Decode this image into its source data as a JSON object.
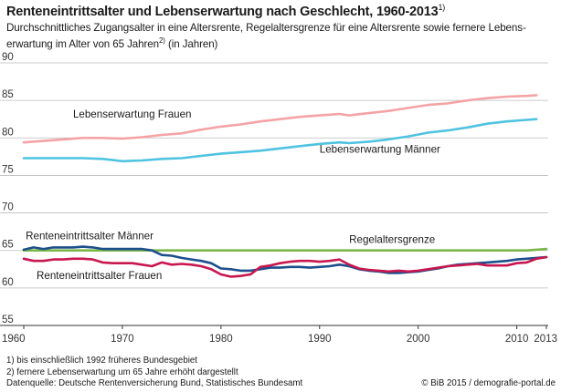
{
  "header": {
    "title": "Renteneintrittsalter und Lebenserwartung nach Geschlecht, 1960-2013",
    "title_sup": "1)",
    "subtitle_part1": "Durchschnittliches Zugangsalter in eine Altersrente, Regelaltersgrenze für eine Altersrente sowie fernere Lebens-erwartung im Alter von 65 Jahren",
    "subtitle_sup": "2)",
    "subtitle_part2": " (in Jahren)"
  },
  "footer": {
    "note1": "1) bis einschließlich 1992 früheres Bundesgebiet",
    "note2": "2) fernere Lebenserwartung um 65 Jahre erhöht dargestellt",
    "source": "Datenquelle: Deutsche Rentenversicherung Bund, Statistisches Bundesamt",
    "credit": "© BiB 2015 / demografie-portal.de"
  },
  "chart_data": {
    "type": "line",
    "xlim": [
      1960,
      2013
    ],
    "ylim": [
      55,
      90
    ],
    "x_ticks": [
      1960,
      1970,
      1980,
      1990,
      2000,
      2010,
      2013
    ],
    "y_ticks": [
      55,
      60,
      65,
      70,
      75,
      80,
      85,
      90
    ],
    "grid": "horizontal",
    "series": [
      {
        "name": "Lebenserwartung Frauen",
        "color": "#f4a3a6",
        "points": [
          [
            1960,
            79.4
          ],
          [
            1962,
            79.6
          ],
          [
            1964,
            79.8
          ],
          [
            1966,
            80.0
          ],
          [
            1968,
            80.0
          ],
          [
            1970,
            79.9
          ],
          [
            1972,
            80.1
          ],
          [
            1974,
            80.4
          ],
          [
            1976,
            80.6
          ],
          [
            1978,
            81.1
          ],
          [
            1980,
            81.5
          ],
          [
            1982,
            81.8
          ],
          [
            1984,
            82.2
          ],
          [
            1986,
            82.5
          ],
          [
            1988,
            82.8
          ],
          [
            1990,
            83.0
          ],
          [
            1991,
            83.1
          ],
          [
            1992,
            83.2
          ],
          [
            1993,
            83.0
          ],
          [
            1995,
            83.3
          ],
          [
            1997,
            83.6
          ],
          [
            1999,
            84.0
          ],
          [
            2001,
            84.4
          ],
          [
            2003,
            84.6
          ],
          [
            2005,
            85.0
          ],
          [
            2007,
            85.3
          ],
          [
            2009,
            85.5
          ],
          [
            2011,
            85.6
          ],
          [
            2012,
            85.7
          ]
        ]
      },
      {
        "name": "Lebenserwartung Männer",
        "color": "#4fc3e0",
        "points": [
          [
            1960,
            77.3
          ],
          [
            1962,
            77.3
          ],
          [
            1964,
            77.3
          ],
          [
            1966,
            77.3
          ],
          [
            1968,
            77.2
          ],
          [
            1970,
            76.9
          ],
          [
            1972,
            77.0
          ],
          [
            1974,
            77.2
          ],
          [
            1976,
            77.3
          ],
          [
            1978,
            77.6
          ],
          [
            1980,
            77.9
          ],
          [
            1982,
            78.1
          ],
          [
            1984,
            78.3
          ],
          [
            1986,
            78.6
          ],
          [
            1988,
            78.9
          ],
          [
            1990,
            79.2
          ],
          [
            1992,
            79.4
          ],
          [
            1993,
            79.3
          ],
          [
            1995,
            79.5
          ],
          [
            1997,
            79.8
          ],
          [
            1999,
            80.2
          ],
          [
            2001,
            80.7
          ],
          [
            2003,
            81.0
          ],
          [
            2005,
            81.4
          ],
          [
            2007,
            81.9
          ],
          [
            2009,
            82.2
          ],
          [
            2011,
            82.4
          ],
          [
            2012,
            82.5
          ]
        ]
      },
      {
        "name": "Regelaltersgrenze",
        "color": "#7ab648",
        "points": [
          [
            1960,
            65.0
          ],
          [
            2011,
            65.0
          ],
          [
            2012,
            65.1
          ],
          [
            2013,
            65.2
          ]
        ]
      },
      {
        "name": "Renteneintrittsalter Männer",
        "color": "#1c4f8c",
        "points": [
          [
            1960,
            65.1
          ],
          [
            1961,
            65.4
          ],
          [
            1962,
            65.2
          ],
          [
            1963,
            65.4
          ],
          [
            1964,
            65.4
          ],
          [
            1965,
            65.4
          ],
          [
            1966,
            65.5
          ],
          [
            1967,
            65.4
          ],
          [
            1968,
            65.2
          ],
          [
            1969,
            65.2
          ],
          [
            1970,
            65.2
          ],
          [
            1971,
            65.2
          ],
          [
            1972,
            65.2
          ],
          [
            1973,
            65.0
          ],
          [
            1974,
            64.4
          ],
          [
            1975,
            64.3
          ],
          [
            1976,
            64.0
          ],
          [
            1977,
            63.8
          ],
          [
            1978,
            63.6
          ],
          [
            1979,
            63.3
          ],
          [
            1980,
            62.6
          ],
          [
            1981,
            62.5
          ],
          [
            1982,
            62.3
          ],
          [
            1983,
            62.3
          ],
          [
            1984,
            62.5
          ],
          [
            1985,
            62.7
          ],
          [
            1986,
            62.7
          ],
          [
            1987,
            62.8
          ],
          [
            1988,
            62.8
          ],
          [
            1989,
            62.7
          ],
          [
            1990,
            62.8
          ],
          [
            1991,
            62.9
          ],
          [
            1992,
            63.1
          ],
          [
            1993,
            62.9
          ],
          [
            1994,
            62.5
          ],
          [
            1995,
            62.3
          ],
          [
            1996,
            62.2
          ],
          [
            1997,
            62.0
          ],
          [
            1998,
            62.0
          ],
          [
            1999,
            62.1
          ],
          [
            2000,
            62.2
          ],
          [
            2001,
            62.4
          ],
          [
            2002,
            62.6
          ],
          [
            2003,
            62.9
          ],
          [
            2004,
            63.1
          ],
          [
            2005,
            63.2
          ],
          [
            2006,
            63.3
          ],
          [
            2007,
            63.4
          ],
          [
            2008,
            63.5
          ],
          [
            2009,
            63.6
          ],
          [
            2010,
            63.8
          ],
          [
            2011,
            63.9
          ],
          [
            2012,
            64.0
          ],
          [
            2013,
            64.1
          ]
        ]
      },
      {
        "name": "Renteneintrittsalter Frauen",
        "color": "#c8174f",
        "points": [
          [
            1960,
            63.9
          ],
          [
            1961,
            63.6
          ],
          [
            1962,
            63.6
          ],
          [
            1963,
            63.8
          ],
          [
            1964,
            63.8
          ],
          [
            1965,
            63.9
          ],
          [
            1966,
            63.9
          ],
          [
            1967,
            63.8
          ],
          [
            1968,
            63.4
          ],
          [
            1969,
            63.3
          ],
          [
            1970,
            63.3
          ],
          [
            1971,
            63.3
          ],
          [
            1972,
            63.1
          ],
          [
            1973,
            62.9
          ],
          [
            1974,
            63.4
          ],
          [
            1975,
            63.1
          ],
          [
            1976,
            63.2
          ],
          [
            1977,
            63.1
          ],
          [
            1978,
            62.9
          ],
          [
            1979,
            62.5
          ],
          [
            1980,
            61.8
          ],
          [
            1981,
            61.5
          ],
          [
            1982,
            61.6
          ],
          [
            1983,
            61.8
          ],
          [
            1984,
            62.8
          ],
          [
            1985,
            63.0
          ],
          [
            1986,
            63.3
          ],
          [
            1987,
            63.5
          ],
          [
            1988,
            63.6
          ],
          [
            1989,
            63.6
          ],
          [
            1990,
            63.5
          ],
          [
            1991,
            63.6
          ],
          [
            1992,
            63.8
          ],
          [
            1993,
            63.1
          ],
          [
            1994,
            62.6
          ],
          [
            1995,
            62.4
          ],
          [
            1996,
            62.3
          ],
          [
            1997,
            62.2
          ],
          [
            1998,
            62.3
          ],
          [
            1999,
            62.2
          ],
          [
            2000,
            62.3
          ],
          [
            2001,
            62.5
          ],
          [
            2002,
            62.7
          ],
          [
            2003,
            62.9
          ],
          [
            2004,
            63.0
          ],
          [
            2005,
            63.1
          ],
          [
            2006,
            63.2
          ],
          [
            2007,
            63.0
          ],
          [
            2008,
            63.0
          ],
          [
            2009,
            63.0
          ],
          [
            2010,
            63.3
          ],
          [
            2011,
            63.4
          ],
          [
            2012,
            63.9
          ],
          [
            2013,
            64.1
          ]
        ]
      }
    ],
    "annotations": [
      {
        "text": "Lebenserwartung Frauen",
        "x": 1965,
        "y": 82.7,
        "anchor": "start"
      },
      {
        "text": "Lebenserwartung Männer",
        "x": 1990,
        "y": 78.0,
        "anchor": "start"
      },
      {
        "text": "Regelaltersgrenze",
        "x": 1993,
        "y": 66.0,
        "anchor": "start"
      },
      {
        "text": "Renteneintrittsalter Männer",
        "x": 1960.2,
        "y": 66.5,
        "anchor": "start"
      },
      {
        "text": "Renteneintrittsalter Frauen",
        "x": 1961.3,
        "y": 61.2,
        "anchor": "start"
      }
    ]
  }
}
